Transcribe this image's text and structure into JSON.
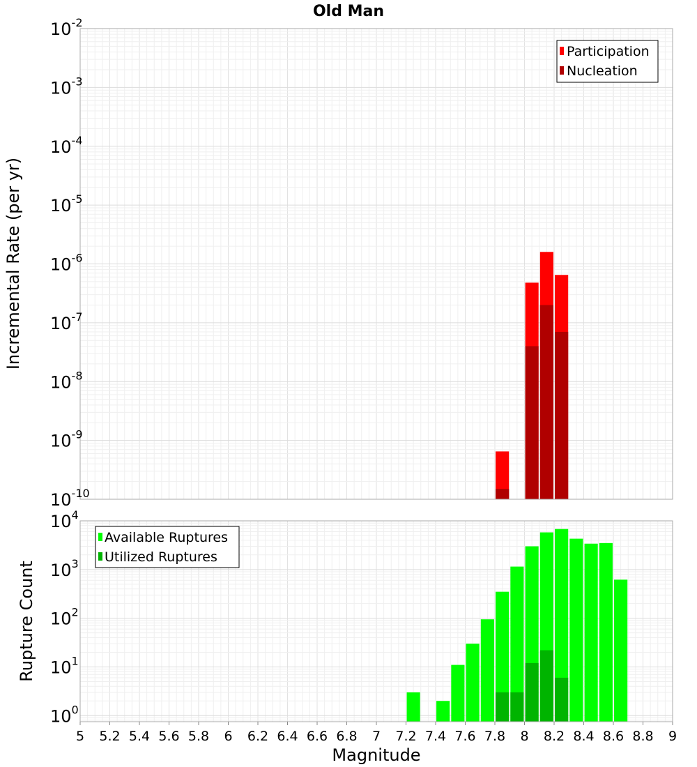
{
  "chart_data": [
    {
      "type": "bar",
      "title": "Old Man",
      "ylabel": "Incremental Rate (per yr)",
      "yscale": "log",
      "xlim": [
        5,
        9
      ],
      "ylim": [
        1e-10,
        0.01
      ],
      "grid": true,
      "legend_position": "top-right",
      "y_tick_exponents": [
        "-10",
        "-9",
        "-8",
        "-7",
        "-6",
        "-5",
        "-4",
        "-3",
        "-2"
      ],
      "series": [
        {
          "name": "Participation",
          "color": "#ff0000",
          "points": [
            {
              "x": 7.85,
              "y": 6.5e-10
            },
            {
              "x": 8.05,
              "y": 4.8e-07
            },
            {
              "x": 8.15,
              "y": 1.6e-06
            },
            {
              "x": 8.25,
              "y": 6.5e-07
            }
          ]
        },
        {
          "name": "Nucleation",
          "color": "#b00000",
          "points": [
            {
              "x": 7.85,
              "y": 1.5e-10
            },
            {
              "x": 8.05,
              "y": 4e-08
            },
            {
              "x": 8.15,
              "y": 2e-07
            },
            {
              "x": 8.25,
              "y": 7e-08
            }
          ]
        }
      ]
    },
    {
      "type": "bar",
      "xlabel": "Magnitude",
      "ylabel": "Rupture Count",
      "yscale": "log",
      "xlim": [
        5,
        9
      ],
      "ylim": [
        0.75,
        10000
      ],
      "grid": true,
      "legend_position": "top-left",
      "x_ticks": [
        "5",
        "5.2",
        "5.4",
        "5.6",
        "5.8",
        "6",
        "6.2",
        "6.4",
        "6.6",
        "6.8",
        "7",
        "7.2",
        "7.4",
        "7.6",
        "7.8",
        "8",
        "8.2",
        "8.4",
        "8.6",
        "8.8",
        "9"
      ],
      "y_tick_exponents": [
        "0",
        "1",
        "2",
        "3",
        "4"
      ],
      "series": [
        {
          "name": "Available Ruptures",
          "color": "#00ff00",
          "points": [
            {
              "x": 7.25,
              "y": 3
            },
            {
              "x": 7.45,
              "y": 2
            },
            {
              "x": 7.55,
              "y": 11
            },
            {
              "x": 7.65,
              "y": 30
            },
            {
              "x": 7.75,
              "y": 95
            },
            {
              "x": 7.85,
              "y": 350
            },
            {
              "x": 7.95,
              "y": 1150
            },
            {
              "x": 8.05,
              "y": 3000
            },
            {
              "x": 8.15,
              "y": 5800
            },
            {
              "x": 8.25,
              "y": 6800
            },
            {
              "x": 8.35,
              "y": 4300
            },
            {
              "x": 8.45,
              "y": 3400
            },
            {
              "x": 8.55,
              "y": 3500
            },
            {
              "x": 8.65,
              "y": 620
            }
          ]
        },
        {
          "name": "Utilized Ruptures",
          "color": "#00b400",
          "points": [
            {
              "x": 7.85,
              "y": 3
            },
            {
              "x": 7.95,
              "y": 3
            },
            {
              "x": 8.05,
              "y": 12
            },
            {
              "x": 8.15,
              "y": 22
            },
            {
              "x": 8.25,
              "y": 6
            }
          ]
        }
      ]
    }
  ]
}
